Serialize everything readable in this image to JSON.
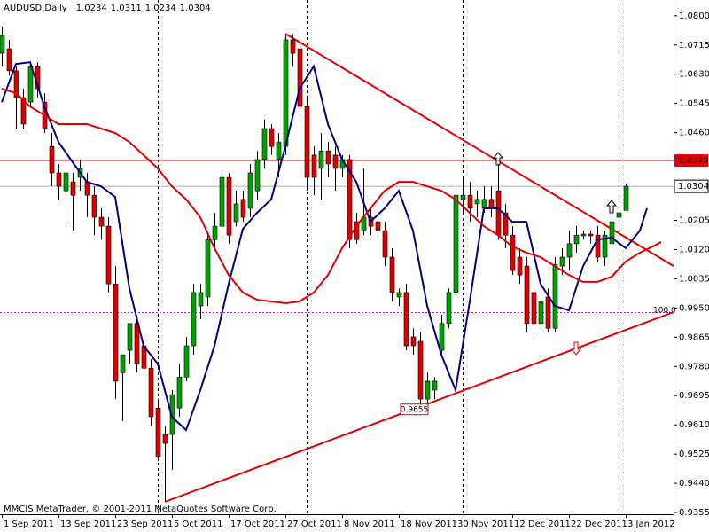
{
  "chart_data": {
    "type": "candlestick",
    "title": "AUDUSD,Daily",
    "footer": "MMCIS MetaTrader, © 2001-2011 MetaQuotes Software Corp.",
    "categories": [
      "1 Sep 2011",
      null,
      null,
      null,
      null,
      null,
      null,
      null,
      "13 Sep 2011",
      null,
      null,
      null,
      null,
      null,
      null,
      null,
      "23 Sep 2011",
      null,
      null,
      null,
      null,
      null,
      null,
      null,
      "5 Oct 2011",
      null,
      null,
      null,
      null,
      null,
      null,
      null,
      "17 Oct 2011",
      null,
      null,
      null,
      null,
      null,
      null,
      null,
      "27 Oct 2011",
      null,
      null,
      null,
      null,
      null,
      null,
      null,
      "8 Nov 2011",
      null,
      null,
      null,
      null,
      null,
      null,
      null,
      "18 Nov 2011",
      null,
      null,
      null,
      null,
      null,
      null,
      null,
      "30 Nov 2011",
      null,
      null,
      null,
      null,
      null,
      null,
      null,
      "12 Dec 2011",
      null,
      null,
      null,
      null,
      null,
      null,
      null,
      "22 Dec 2011",
      null,
      null,
      null,
      null,
      null,
      null,
      null,
      "3 Jan 2012"
    ],
    "open": [
      1.0691,
      1.0704,
      1.064,
      1.0562,
      1.0549,
      1.0652,
      1.0549,
      1.042,
      1.0343,
      1.0291,
      1.0317,
      1.033,
      1.0317,
      1.0278,
      1.0214,
      1.0188,
      1.002,
      0.9762,
      0.9827,
      0.9905,
      0.984,
      0.9775,
      0.9659,
      0.9582,
      0.9582,
      0.9659,
      0.9749,
      0.984,
      0.9956,
      0.9982,
      1.0149,
      1.0188,
      1.033,
      1.0201,
      1.0266,
      1.024,
      1.0291,
      1.0382,
      1.0472,
      1.0382,
      1.042,
      1.073,
      1.0704,
      1.0536,
      1.0395,
      1.0356,
      1.0407,
      1.0395,
      1.0356,
      1.0382,
      1.0201,
      1.0175,
      1.0214,
      1.0201,
      1.0175,
      1.0098,
      0.9982,
      0.9995,
      0.9866,
      0.9853,
      0.9685,
      0.9711,
      0.9827,
      0.9905,
      0.9995,
      1.0266,
      1.0278,
      1.0253,
      1.024,
      1.0266,
      1.0291,
      1.0227,
      1.0162,
      1.0098,
      1.0072,
      0.9995,
      0.9905,
      0.9982,
      0.9891,
      1.0072,
      1.0098,
      1.0137,
      1.016,
      1.0165,
      1.0162,
      1.0098,
      1.0137,
      1.0214,
      1.0234
    ],
    "high": [
      1.0769,
      1.073,
      1.0652,
      1.0588,
      1.0665,
      1.0665,
      1.0575,
      1.0459,
      1.0369,
      1.0343,
      1.0343,
      1.0382,
      1.0343,
      1.0304,
      1.024,
      1.0214,
      1.0072,
      0.9814,
      0.9905,
      0.993,
      0.9866,
      0.9801,
      0.9685,
      0.9608,
      0.9711,
      0.9788,
      0.9866,
      1.002,
      1.002,
      1.0162,
      1.0227,
      1.0343,
      1.0343,
      1.0291,
      1.0291,
      1.0369,
      1.0407,
      1.0498,
      1.0485,
      1.0459,
      1.0743,
      1.0748,
      1.0717,
      1.0562,
      1.042,
      1.0459,
      1.0433,
      1.042,
      1.0395,
      1.0395,
      1.0227,
      1.0356,
      1.024,
      1.0227,
      1.0201,
      1.0124,
      1.0007,
      1.002,
      0.9891,
      0.9879,
      0.9762,
      0.9749,
      0.993,
      1.0007,
      1.033,
      1.033,
      1.0317,
      1.0291,
      1.0304,
      1.0304,
      1.0369,
      1.0253,
      1.0188,
      1.0124,
      1.0098,
      1.002,
      0.9995,
      1.0007,
      1.0098,
      1.0124,
      1.0175,
      1.0188,
      1.0175,
      1.0175,
      1.0188,
      1.0175,
      1.0266,
      1.024,
      1.0311
    ],
    "low": [
      1.0652,
      1.0626,
      1.0472,
      1.0472,
      1.0536,
      1.0562,
      1.0459,
      1.0304,
      1.0266,
      1.0188,
      1.0175,
      1.0291,
      1.0214,
      1.0162,
      1.0149,
      0.9995,
      0.9685,
      0.9621,
      0.9788,
      0.9762,
      0.9762,
      0.9608,
      0.9505,
      0.9388,
      0.9479,
      0.9634,
      0.9737,
      0.9814,
      0.9917,
      0.9956,
      1.0124,
      1.0162,
      1.0137,
      1.0188,
      1.0201,
      1.0214,
      1.0266,
      1.0356,
      1.0395,
      1.033,
      1.0395,
      1.0652,
      1.0511,
      1.0291,
      1.0278,
      1.0266,
      1.033,
      1.0291,
      1.033,
      1.0124,
      1.0137,
      1.0162,
      1.0162,
      1.0149,
      1.0072,
      0.9969,
      0.9956,
      0.9827,
      0.9814,
      0.9655,
      0.9672,
      0.9685,
      0.9814,
      0.9891,
      0.9982,
      1.0227,
      1.0201,
      1.0214,
      1.0227,
      1.0214,
      1.0149,
      1.0124,
      1.0046,
      1.002,
      0.9879,
      0.9866,
      0.9879,
      0.9879,
      0.9879,
      1.0046,
      1.0059,
      1.0111,
      1.0149,
      1.0137,
      1.0085,
      1.0072,
      1.0124,
      1.0201,
      1.0234
    ],
    "close": [
      1.0743,
      1.064,
      1.0562,
      1.0485,
      1.0652,
      1.0588,
      1.0472,
      1.0343,
      1.0304,
      1.0343,
      1.0278,
      1.0356,
      1.0278,
      1.0214,
      1.0188,
      1.002,
      0.9737,
      0.9814,
      0.9905,
      0.9788,
      0.9775,
      0.9634,
      0.9518,
      0.9556,
      0.9698,
      0.9749,
      0.984,
      0.9995,
      0.9995,
      1.0149,
      1.0188,
      1.033,
      1.0162,
      1.0253,
      1.0214,
      1.0343,
      1.0382,
      1.0472,
      1.042,
      1.0433,
      1.073,
      1.0691,
      1.0536,
      1.033,
      1.033,
      1.0407,
      1.0369,
      1.0356,
      1.0382,
      1.0149,
      1.0149,
      1.0214,
      1.0188,
      1.0175,
      1.0098,
      0.9995,
      0.9995,
      0.984,
      0.984,
      0.9685,
      0.9737,
      0.9737,
      0.9905,
      0.9995,
      1.0278,
      1.0278,
      1.024,
      1.0266,
      1.0266,
      1.024,
      1.0162,
      1.0162,
      1.0059,
      1.0046,
      0.9905,
      0.9905,
      0.9969,
      0.9891,
      1.0077,
      1.0098,
      1.0137,
      1.0162,
      1.0165,
      1.016,
      1.0098,
      1.0162,
      1.0201,
      1.0227,
      1.0304
    ],
    "up_color": "#00a000",
    "down_color": "#e00000",
    "lines": [
      {
        "color": "#000080",
        "x": [
          0,
          2,
          4,
          6,
          8,
          10,
          12,
          14,
          16,
          18,
          20,
          22,
          24,
          26,
          28,
          30,
          32,
          34,
          36,
          38,
          40,
          42,
          44,
          46,
          48,
          50,
          52,
          54,
          56,
          58,
          60,
          62,
          64,
          66,
          68,
          70,
          72,
          74,
          76,
          78,
          80,
          82,
          84,
          86,
          88,
          90,
          91
        ],
        "values": [
          1.0549,
          1.066,
          1.0665,
          1.0536,
          1.0433,
          1.0374,
          1.0317,
          1.0304,
          1.0273,
          1.0007,
          0.984,
          0.9788,
          0.9633,
          0.9595,
          0.9711,
          0.984,
          1.002,
          1.018,
          1.0227,
          1.0266,
          1.042,
          1.0588,
          1.0653,
          1.0485,
          1.0382,
          1.0317,
          1.0201,
          1.024,
          1.0291,
          1.0175,
          0.9956,
          0.9814,
          0.9711,
          0.9969,
          1.024,
          1.024,
          1.0201,
          1.0201,
          1.002,
          0.9956,
          0.9943,
          1.0072,
          1.0149,
          1.0155,
          1.0124,
          1.0175,
          1.024
        ]
      },
      {
        "color": "#e00000",
        "x": [
          0,
          2,
          4,
          6,
          8,
          10,
          12,
          14,
          16,
          18,
          20,
          22,
          24,
          26,
          28,
          30,
          32,
          34,
          36,
          38,
          40,
          42,
          44,
          46,
          48,
          50,
          52,
          54,
          56,
          58,
          60,
          62,
          64,
          66,
          68,
          70,
          72,
          74,
          76,
          78,
          80,
          82,
          84,
          86,
          88,
          90,
          92,
          93
        ],
        "values": [
          1.0588,
          1.0575,
          1.0536,
          1.0511,
          1.0485,
          1.0485,
          1.0485,
          1.0472,
          1.0459,
          1.0433,
          1.0395,
          1.0356,
          1.0304,
          1.0266,
          1.0214,
          1.0124,
          1.0046,
          0.9995,
          0.9974,
          0.9969,
          0.9964,
          0.9969,
          0.9995,
          1.0046,
          1.0124,
          1.0188,
          1.024,
          1.0291,
          1.0317,
          1.0317,
          1.0304,
          1.0291,
          1.0266,
          1.0227,
          1.0188,
          1.0162,
          1.0129,
          1.0111,
          1.0098,
          1.0072,
          1.0046,
          1.0026,
          1.0026,
          1.0041,
          1.0085,
          1.0111,
          1.0131,
          1.0142
        ]
      }
    ],
    "price_line": {
      "value": 1.0379,
      "color": "#e00000"
    },
    "level_label": "100.0",
    "low_label": 0.9655,
    "ylim": [
      0.935,
      1.0846
    ],
    "yticks": [
      {
        "value": 1.08,
        "label": "1.0800"
      },
      1.0715,
      {
        "value": 1.063,
        "label": "1.0630"
      },
      1.0545,
      {
        "value": 1.046,
        "label": "1.0460"
      },
      1.0205,
      {
        "value": 1.012,
        "label": "1.0120"
      },
      1.0035,
      {
        "value": 0.995,
        "label": "0.9950"
      },
      0.9865,
      {
        "value": 0.978,
        "label": "0.9780"
      },
      0.9695,
      {
        "value": 0.961,
        "label": "0.9610"
      },
      0.9525,
      {
        "value": 0.944,
        "label": "0.9440"
      },
      0.9355
    ]
  }
}
